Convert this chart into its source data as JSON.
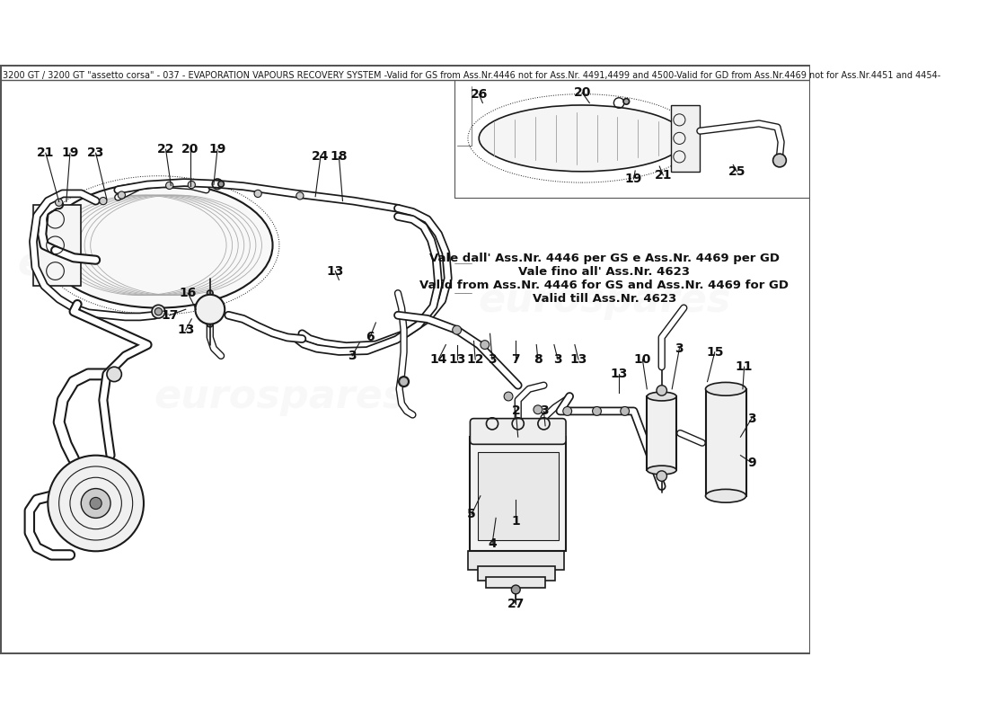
{
  "title": "3200 GT / 3200 GT \"assetto corsa\" - 037 - EVAPORATION VAPOURS RECOVERY SYSTEM -Valid for GS from Ass.Nr.4446 not for Ass.Nr. 4491,4499 and 4500-Valid for GD from Ass.Nr.4469 not for Ass.Nr.4451 and 4454-",
  "title_fontsize": 7.0,
  "bg_color": "#ffffff",
  "watermark_text": "eurospares",
  "note_text": "Vale dall' Ass.Nr. 4446 per GS e Ass.Nr. 4469 per GD\nVale fino all' Ass.Nr. 4623\nValid from Ass.Nr. 4446 for GS and Ass.Nr. 4469 for GD\nValid till Ass.Nr. 4623",
  "line_color": "#1a1a1a",
  "label_color": "#111111",
  "wm_color": "#cccccc"
}
